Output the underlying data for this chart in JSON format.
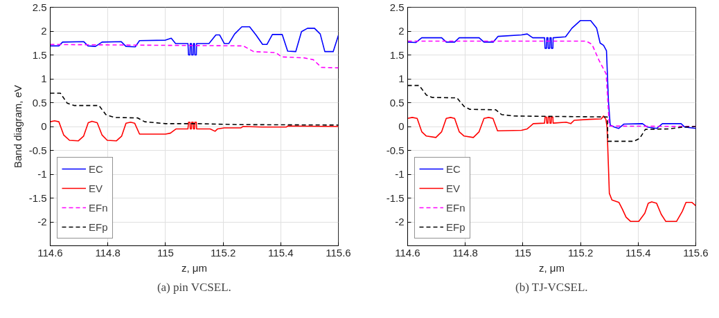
{
  "chart_data": [
    {
      "type": "line",
      "xlabel": "z, μm",
      "ylabel": "Band diagram, eV",
      "annotations": [
        "(a) pin VCSEL."
      ],
      "xlim": [
        114.6,
        115.6
      ],
      "ylim": [
        -2.5,
        2.5
      ],
      "xticks": [
        114.6,
        114.8,
        115,
        115.2,
        115.4,
        115.6
      ],
      "yticks": [
        -2,
        -1.5,
        -1,
        -0.5,
        0,
        0.5,
        1,
        1.5,
        2,
        2.5
      ],
      "grid": true,
      "legend": "bottom left",
      "series": [
        {
          "name": "EC",
          "color": "#0000ff",
          "line_style": "solid",
          "x": [
            114.6,
            114.63,
            114.643,
            114.716,
            114.731,
            114.757,
            114.78,
            114.846,
            114.863,
            114.895,
            114.91,
            115.0,
            115.02,
            115.035,
            115.078,
            115.08,
            115.085,
            115.086,
            115.09,
            115.091,
            115.096,
            115.097,
            115.101,
            115.102,
            115.107,
            115.108,
            115.151,
            115.175,
            115.188,
            115.204,
            115.22,
            115.24,
            115.265,
            115.292,
            115.314,
            115.337,
            115.352,
            115.371,
            115.405,
            115.424,
            115.452,
            115.472,
            115.493,
            115.517,
            115.537,
            115.553,
            115.582,
            115.6
          ],
          "values": [
            1.69,
            1.69,
            1.77,
            1.78,
            1.69,
            1.68,
            1.77,
            1.78,
            1.68,
            1.67,
            1.8,
            1.81,
            1.85,
            1.74,
            1.74,
            1.5,
            1.5,
            1.74,
            1.74,
            1.5,
            1.5,
            1.74,
            1.74,
            1.5,
            1.5,
            1.74,
            1.74,
            1.92,
            1.92,
            1.74,
            1.74,
            1.94,
            2.09,
            2.09,
            1.92,
            1.72,
            1.72,
            1.93,
            1.93,
            1.58,
            1.57,
            1.99,
            2.06,
            2.06,
            1.94,
            1.57,
            1.57,
            1.91
          ]
        },
        {
          "name": "EV",
          "color": "#ff0000",
          "line_style": "solid",
          "x": [
            114.6,
            114.615,
            114.63,
            114.647,
            114.667,
            114.698,
            114.716,
            114.732,
            114.745,
            114.763,
            114.78,
            114.798,
            114.83,
            114.848,
            114.863,
            114.879,
            114.893,
            114.91,
            115.0,
            115.017,
            115.037,
            115.078,
            115.08,
            115.085,
            115.086,
            115.09,
            115.091,
            115.096,
            115.097,
            115.101,
            115.102,
            115.107,
            115.108,
            115.155,
            115.172,
            115.181,
            115.204,
            115.261,
            115.269,
            115.334,
            115.42,
            115.424,
            115.6
          ],
          "values": [
            0.1,
            0.12,
            0.1,
            -0.18,
            -0.29,
            -0.3,
            -0.2,
            0.08,
            0.11,
            0.08,
            -0.18,
            -0.29,
            -0.3,
            -0.2,
            0.07,
            0.09,
            0.07,
            -0.16,
            -0.16,
            -0.14,
            -0.05,
            -0.05,
            0.09,
            0.09,
            -0.05,
            -0.05,
            0.09,
            0.09,
            -0.05,
            -0.05,
            0.09,
            0.09,
            -0.05,
            -0.05,
            -0.1,
            -0.05,
            -0.03,
            -0.03,
            0.0,
            -0.01,
            -0.01,
            0.01,
            0.0
          ]
        },
        {
          "name": "EFn",
          "color": "#ff00ff",
          "line_style": "dashed",
          "x": [
            114.6,
            115.27,
            115.306,
            115.383,
            115.403,
            115.48,
            115.513,
            115.541,
            115.6
          ],
          "values": [
            1.72,
            1.69,
            1.57,
            1.55,
            1.46,
            1.44,
            1.4,
            1.24,
            1.23
          ]
        },
        {
          "name": "EFp",
          "color": "#000000",
          "line_style": "dashed",
          "x": [
            114.6,
            114.635,
            114.659,
            114.684,
            114.769,
            114.793,
            114.822,
            114.903,
            114.928,
            115.0,
            115.107,
            115.253,
            115.6
          ],
          "values": [
            0.7,
            0.7,
            0.49,
            0.44,
            0.44,
            0.25,
            0.19,
            0.18,
            0.1,
            0.06,
            0.06,
            0.04,
            0.03
          ]
        }
      ]
    },
    {
      "type": "line",
      "xlabel": "z, μm",
      "annotations": [
        "(b) TJ-VCSEL."
      ],
      "xlim": [
        114.6,
        115.6
      ],
      "ylim": [
        -2.5,
        2.5
      ],
      "xticks": [
        114.6,
        114.8,
        115,
        115.2,
        115.4,
        115.6
      ],
      "yticks": [
        -2,
        -1.5,
        -1,
        -0.5,
        0,
        0.5,
        1,
        1.5,
        2,
        2.5
      ],
      "grid": true,
      "legend": "bottom left",
      "series": [
        {
          "name": "EC",
          "color": "#0000ff",
          "line_style": "solid",
          "x": [
            114.6,
            114.628,
            114.649,
            114.718,
            114.734,
            114.763,
            114.779,
            114.848,
            114.865,
            114.897,
            114.914,
            114.995,
            115.015,
            115.034,
            115.075,
            115.077,
            115.082,
            115.083,
            115.087,
            115.088,
            115.093,
            115.094,
            115.098,
            115.099,
            115.104,
            115.105,
            115.148,
            115.17,
            115.199,
            115.235,
            115.256,
            115.268,
            115.28,
            115.29,
            115.297,
            115.303,
            115.317,
            115.332,
            115.35,
            115.415,
            115.431,
            115.464,
            115.484,
            115.549,
            115.561,
            115.6
          ],
          "values": [
            1.77,
            1.76,
            1.86,
            1.86,
            1.77,
            1.77,
            1.86,
            1.86,
            1.77,
            1.77,
            1.89,
            1.92,
            1.94,
            1.86,
            1.86,
            1.64,
            1.64,
            1.86,
            1.86,
            1.64,
            1.64,
            1.86,
            1.86,
            1.64,
            1.64,
            1.86,
            1.88,
            2.06,
            2.22,
            2.22,
            2.06,
            1.75,
            1.7,
            1.59,
            0.52,
            0.03,
            -0.01,
            -0.04,
            0.05,
            0.06,
            -0.01,
            -0.04,
            0.06,
            0.06,
            -0.01,
            -0.04
          ]
        },
        {
          "name": "EV",
          "color": "#ff0000",
          "line_style": "solid",
          "x": [
            114.6,
            114.616,
            114.633,
            114.649,
            114.665,
            114.698,
            114.718,
            114.734,
            114.749,
            114.763,
            114.779,
            114.796,
            114.828,
            114.848,
            114.865,
            114.881,
            114.896,
            114.912,
            114.995,
            115.015,
            115.036,
            115.075,
            115.077,
            115.082,
            115.083,
            115.087,
            115.088,
            115.093,
            115.094,
            115.098,
            115.099,
            115.104,
            115.105,
            115.15,
            115.166,
            115.178,
            115.231,
            115.272,
            115.28,
            115.288,
            115.292,
            115.297,
            115.3,
            115.309,
            115.333,
            115.345,
            115.358,
            115.374,
            115.402,
            115.423,
            115.435,
            115.447,
            115.464,
            115.48,
            115.496,
            115.533,
            115.553,
            115.566,
            115.586,
            115.6
          ],
          "values": [
            0.17,
            0.19,
            0.17,
            -0.11,
            -0.2,
            -0.23,
            -0.11,
            0.17,
            0.19,
            0.17,
            -0.11,
            -0.2,
            -0.23,
            -0.11,
            0.17,
            0.19,
            0.17,
            -0.09,
            -0.08,
            -0.05,
            0.06,
            0.07,
            0.2,
            0.2,
            0.07,
            0.07,
            0.2,
            0.2,
            0.07,
            0.07,
            0.2,
            0.2,
            0.07,
            0.09,
            0.06,
            0.13,
            0.15,
            0.16,
            0.22,
            0.15,
            -0.01,
            -0.87,
            -1.4,
            -1.54,
            -1.59,
            -1.73,
            -1.9,
            -1.99,
            -1.99,
            -1.82,
            -1.61,
            -1.58,
            -1.61,
            -1.84,
            -1.99,
            -1.99,
            -1.78,
            -1.59,
            -1.59,
            -1.66
          ]
        },
        {
          "name": "EFn",
          "color": "#ff00ff",
          "line_style": "dashed",
          "x": [
            114.6,
            115.22,
            115.24,
            115.264,
            115.289,
            115.3,
            115.6
          ],
          "values": [
            1.79,
            1.79,
            1.72,
            1.39,
            1.1,
            0.01,
            0.0
          ]
        },
        {
          "name": "EFp",
          "color": "#000000",
          "line_style": "dashed",
          "x": [
            114.6,
            114.64,
            114.665,
            114.685,
            114.771,
            114.796,
            114.816,
            114.906,
            114.926,
            114.969,
            115.293,
            115.295,
            115.385,
            115.405,
            115.425,
            115.507,
            115.556,
            115.6
          ],
          "values": [
            0.86,
            0.86,
            0.66,
            0.61,
            0.6,
            0.42,
            0.36,
            0.35,
            0.25,
            0.22,
            0.2,
            -0.31,
            -0.31,
            -0.25,
            -0.06,
            -0.05,
            -0.01,
            0.0
          ]
        }
      ]
    }
  ]
}
